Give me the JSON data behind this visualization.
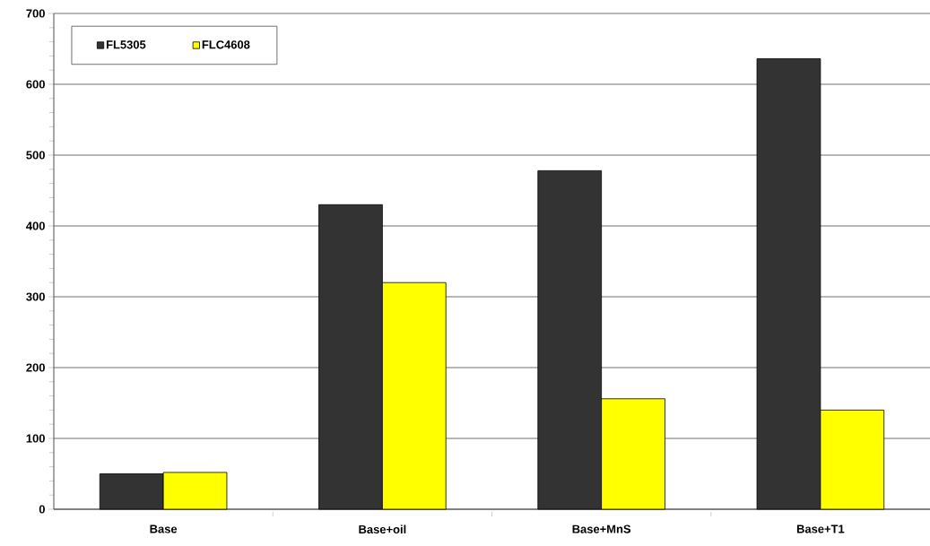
{
  "chart_data": {
    "type": "bar",
    "categories": [
      "Base",
      "Base+oil",
      "Base+MnS",
      "Base+T1"
    ],
    "series": [
      {
        "name": "FL5305",
        "color": "#333333",
        "values": [
          50,
          430,
          478,
          636
        ]
      },
      {
        "name": "FLC4608",
        "color": "#ffff00",
        "values": [
          52,
          320,
          156,
          140
        ]
      }
    ],
    "ylim": [
      0,
      700
    ],
    "yticks": [
      0,
      100,
      200,
      300,
      400,
      500,
      600,
      700
    ],
    "grid": "y",
    "legend": "top left"
  }
}
